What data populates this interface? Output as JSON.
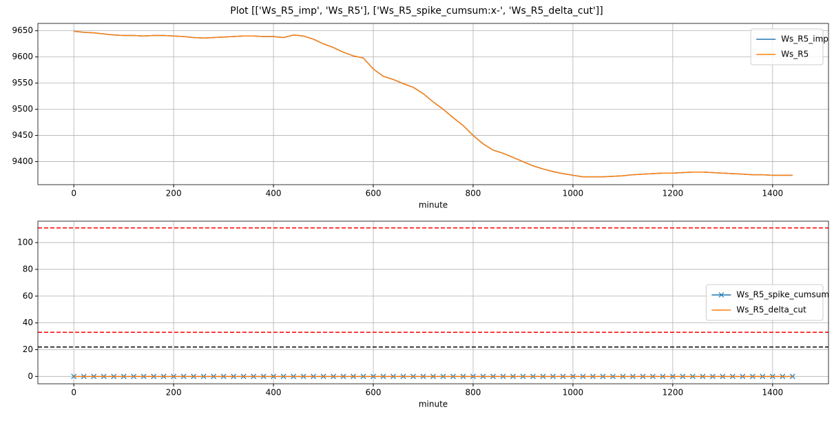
{
  "title": "Plot [['Ws_R5_imp', 'Ws_R5'], ['Ws_R5_spike_cumsum:x-', 'Ws_R5_delta_cut']]",
  "chart_data": [
    {
      "type": "line",
      "xlabel": "minute",
      "x": [
        0,
        20,
        40,
        60,
        80,
        100,
        120,
        140,
        160,
        180,
        200,
        220,
        240,
        260,
        280,
        300,
        320,
        340,
        360,
        380,
        400,
        420,
        440,
        460,
        480,
        500,
        520,
        540,
        560,
        580,
        600,
        620,
        640,
        660,
        680,
        700,
        720,
        740,
        760,
        780,
        800,
        820,
        840,
        860,
        880,
        900,
        920,
        940,
        960,
        980,
        1000,
        1020,
        1040,
        1060,
        1080,
        1100,
        1120,
        1140,
        1160,
        1180,
        1200,
        1220,
        1240,
        1260,
        1280,
        1300,
        1320,
        1340,
        1360,
        1380,
        1400,
        1420,
        1440
      ],
      "series": [
        {
          "name": "Ws_R5_imp",
          "color": "#1f77b4",
          "values": [
            9649,
            9647,
            9646,
            9644,
            9642,
            9641,
            9641,
            9640,
            9641,
            9641,
            9640,
            9639,
            9637,
            9636,
            9637,
            9638,
            9639,
            9640,
            9640,
            9639,
            9639,
            9637,
            9642,
            9640,
            9634,
            9625,
            9618,
            9609,
            9602,
            9598,
            9577,
            9563,
            9557,
            9549,
            9542,
            9530,
            9514,
            9500,
            9484,
            9469,
            9450,
            9434,
            9422,
            9416,
            9408,
            9400,
            9392,
            9386,
            9381,
            9377,
            9374,
            9371,
            9371,
            9371,
            9372,
            9373,
            9375,
            9376,
            9377,
            9378,
            9378,
            9379,
            9380,
            9380,
            9379,
            9378,
            9377,
            9376,
            9375,
            9375,
            9374,
            9374,
            9374
          ]
        },
        {
          "name": "Ws_R5",
          "color": "#ff7f0e",
          "values": [
            9649,
            9647,
            9646,
            9644,
            9642,
            9641,
            9641,
            9640,
            9641,
            9641,
            9640,
            9639,
            9637,
            9636,
            9637,
            9638,
            9639,
            9640,
            9640,
            9639,
            9639,
            9637,
            9642,
            9640,
            9634,
            9625,
            9618,
            9609,
            9602,
            9598,
            9577,
            9563,
            9557,
            9549,
            9542,
            9530,
            9514,
            9500,
            9484,
            9469,
            9450,
            9434,
            9422,
            9416,
            9408,
            9400,
            9392,
            9386,
            9381,
            9377,
            9374,
            9371,
            9371,
            9371,
            9372,
            9373,
            9375,
            9376,
            9377,
            9378,
            9378,
            9379,
            9380,
            9380,
            9379,
            9378,
            9377,
            9376,
            9375,
            9375,
            9374,
            9374,
            9374
          ]
        }
      ],
      "xlim": [
        -72,
        1512
      ],
      "xticks": [
        0,
        200,
        400,
        600,
        800,
        1000,
        1200,
        1400
      ],
      "ylim": [
        9356,
        9664
      ],
      "yticks": [
        9400,
        9450,
        9500,
        9550,
        9600,
        9650
      ],
      "grid": true,
      "legend": "upper right"
    },
    {
      "type": "line",
      "xlabel": "minute",
      "x": [
        0,
        20,
        40,
        60,
        80,
        100,
        120,
        140,
        160,
        180,
        200,
        220,
        240,
        260,
        280,
        300,
        320,
        340,
        360,
        380,
        400,
        420,
        440,
        460,
        480,
        500,
        520,
        540,
        560,
        580,
        600,
        620,
        640,
        660,
        680,
        700,
        720,
        740,
        760,
        780,
        800,
        820,
        840,
        860,
        880,
        900,
        920,
        940,
        960,
        980,
        1000,
        1020,
        1040,
        1060,
        1080,
        1100,
        1120,
        1140,
        1160,
        1180,
        1200,
        1220,
        1240,
        1260,
        1280,
        1300,
        1320,
        1340,
        1360,
        1380,
        1400,
        1420,
        1440
      ],
      "series": [
        {
          "name": "Ws_R5_spike_cumsum",
          "color": "#1f77b4",
          "marker": "x",
          "values": [
            0,
            0,
            0,
            0,
            0,
            0,
            0,
            0,
            0,
            0,
            0,
            0,
            0,
            0,
            0,
            0,
            0,
            0,
            0,
            0,
            0,
            0,
            0,
            0,
            0,
            0,
            0,
            0,
            0,
            0,
            0,
            0,
            0,
            0,
            0,
            0,
            0,
            0,
            0,
            0,
            0,
            0,
            0,
            0,
            0,
            0,
            0,
            0,
            0,
            0,
            0,
            0,
            0,
            0,
            0,
            0,
            0,
            0,
            0,
            0,
            0,
            0,
            0,
            0,
            0,
            0,
            0,
            0,
            0,
            0,
            0,
            0,
            0
          ]
        },
        {
          "name": "Ws_R5_delta_cut",
          "color": "#ff7f0e",
          "values": [
            0,
            0,
            0,
            0,
            0,
            0,
            0,
            0,
            0,
            0,
            0,
            0,
            0,
            0,
            0,
            0,
            0,
            0,
            0,
            0,
            0,
            0,
            0,
            0,
            0,
            0,
            0,
            0,
            0,
            0,
            0,
            0,
            0,
            0,
            0,
            0,
            0,
            0,
            0,
            0,
            0,
            0,
            0,
            0,
            0,
            0,
            0,
            0,
            0,
            0,
            0,
            0,
            0,
            0,
            0,
            0,
            0,
            0,
            0,
            0,
            0,
            0,
            0,
            0,
            0,
            0,
            0,
            0,
            0,
            0,
            0,
            0,
            0
          ]
        }
      ],
      "hlines": [
        {
          "value": 111,
          "color": "#ff0000"
        },
        {
          "value": 33,
          "color": "#ff0000"
        },
        {
          "value": 22,
          "color": "#000000"
        }
      ],
      "xlim": [
        -72,
        1512
      ],
      "xticks": [
        0,
        200,
        400,
        600,
        800,
        1000,
        1200,
        1400
      ],
      "ylim": [
        -5.5,
        116
      ],
      "yticks": [
        0,
        20,
        40,
        60,
        80,
        100
      ],
      "grid": true,
      "legend": "center right"
    }
  ]
}
